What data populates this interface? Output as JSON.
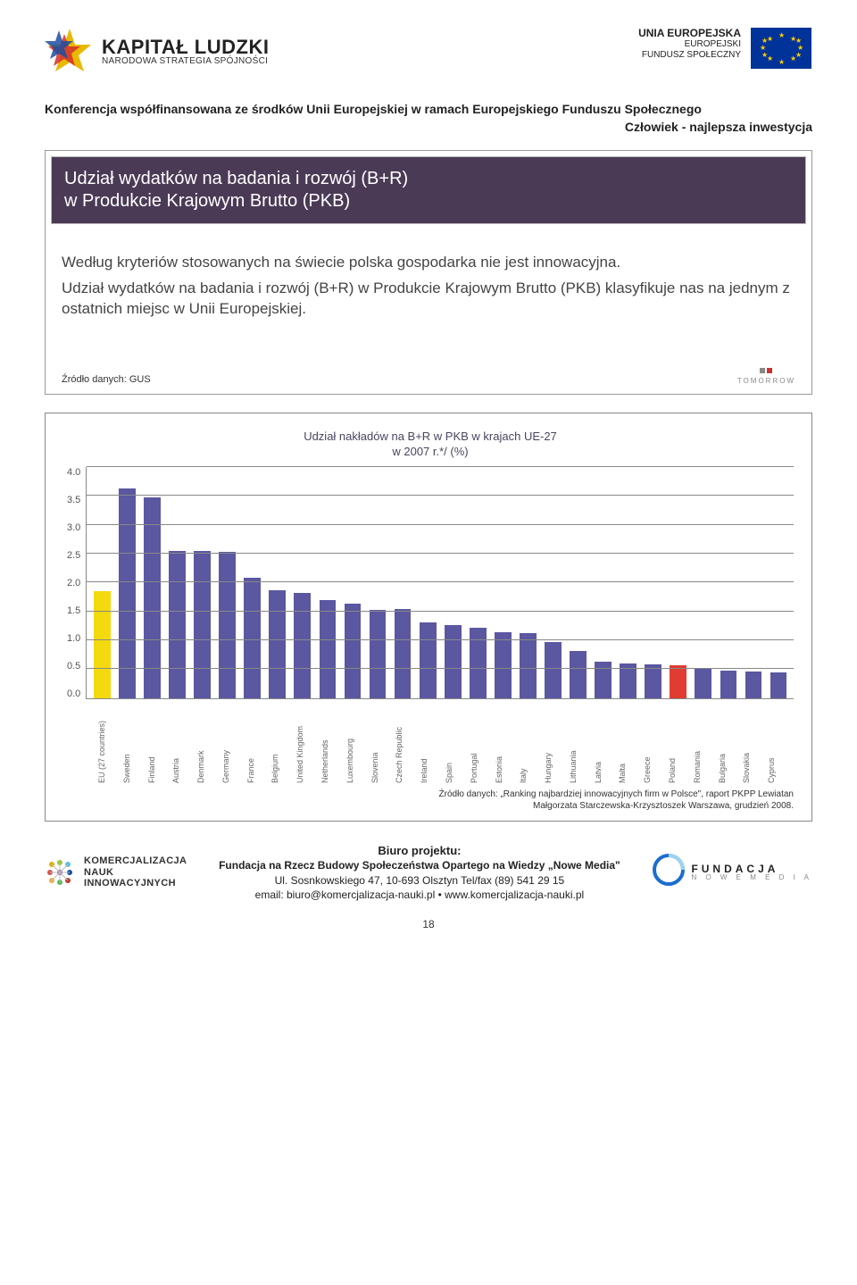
{
  "header": {
    "logo_left": {
      "title": "KAPITAŁ LUDZKI",
      "sub": "NARODOWA STRATEGIA SPÓJNOŚCI"
    },
    "logo_right": {
      "line1": "UNIA EUROPEJSKA",
      "line2": "EUROPEJSKI",
      "line3": "FUNDUSZ SPOŁECZNY"
    }
  },
  "subheader": "Konferencja współfinansowana ze środków Unii Europejskiej w ramach Europejskiego Funduszu Społecznego",
  "subheader2": "Człowiek - najlepsza inwestycja",
  "panel1": {
    "title": "Udział wydatków na badania i rozwój (B+R)\nw Produkcie Krajowym Brutto (PKB)",
    "body1": "Według kryteriów stosowanych na świecie polska gospodarka nie jest innowacyjna.",
    "body2": "Udział wydatków na badania i rozwój (B+R) w Produkcie Krajowym Brutto (PKB) klasyfikuje nas na jednym z ostatnich miejsc w Unii Europejskiej.",
    "source": "Źródło danych: GUS",
    "tomorrow": "TOMORROW"
  },
  "chart": {
    "title": "Udział nakładów na B+R w PKB w krajach UE-27",
    "subtitle": "w 2007 r.*/ (%)",
    "ymax": 4.0,
    "yticks": [
      4.0,
      3.5,
      3.0,
      2.5,
      2.0,
      1.5,
      1.0,
      0.5,
      0.0
    ],
    "bar_default_color": "#5b57a0",
    "bar_highlight_colors": {
      "EU (27 countries)": "#f4d90f",
      "Poland": "#e03c31"
    },
    "grid_color": "#888888",
    "categories": [
      "EU (27 countries)",
      "Sweden",
      "Finland",
      "Austria",
      "Denmark",
      "Germany",
      "France",
      "Belgium",
      "United Kingdom",
      "Netherlands",
      "Luxembourg",
      "Slovenia",
      "Czech Republic",
      "Ireland",
      "Spain",
      "Portugal",
      "Estonia",
      "Italy",
      "Hungary",
      "Lithuania",
      "Latvia",
      "Malta",
      "Greece",
      "Poland",
      "Romania",
      "Bulgaria",
      "Slovakia",
      "Cyprus"
    ],
    "values": [
      1.85,
      3.63,
      3.47,
      2.55,
      2.54,
      2.53,
      2.08,
      1.87,
      1.82,
      1.7,
      1.63,
      1.53,
      1.54,
      1.31,
      1.27,
      1.21,
      1.14,
      1.13,
      0.97,
      0.82,
      0.63,
      0.6,
      0.58,
      0.57,
      0.53,
      0.48,
      0.46,
      0.45
    ],
    "source_line1": "Źródło danych: „Ranking najbardziej innowacyjnych firm w Polsce\", raport PKPP Lewiatan",
    "source_line2": "Małgorzata Starczewska-Krzysztoszek Warszawa, grudzień 2008."
  },
  "footer": {
    "kni": {
      "l1": "KOMERCJALIZACJA",
      "l2": "NAUK",
      "l3": "INNOWACYJNYCH"
    },
    "center": {
      "bp": "Biuro projektu:",
      "fnm": "Fundacja na Rzecz Budowy Społeczeństwa Opartego na Wiedzy „Nowe Media\"",
      "addr": "Ul. Sosnkowskiego 47, 10-693 Olsztyn Tel/fax (89) 541 29 15",
      "email": "email: biuro@komercjalizacja-nauki.pl • www.komercjalizacja-nauki.pl"
    },
    "fundacja": {
      "l1": "FUNDACJA",
      "l2": "N O W E  M E D I A"
    }
  },
  "page_num": "18"
}
